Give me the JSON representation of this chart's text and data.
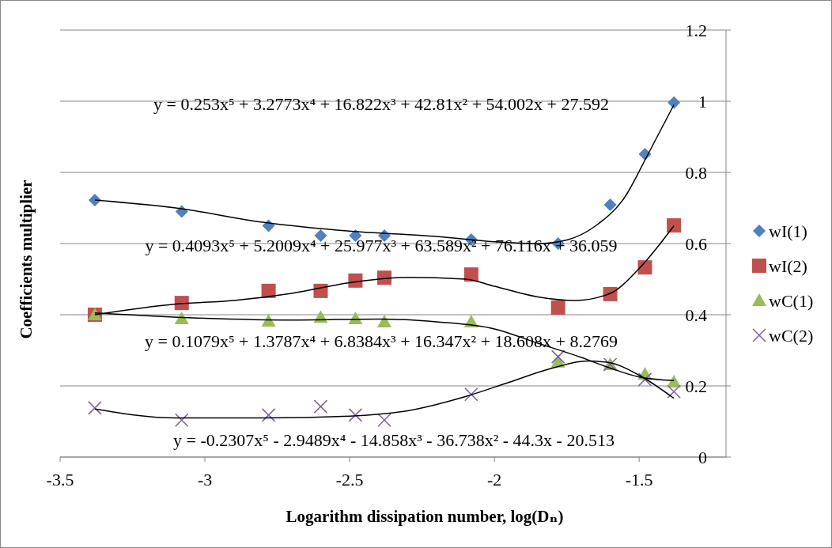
{
  "chart_data": {
    "type": "scatter",
    "xlabel": "Logarithm dissipation number, log(Dₙ)",
    "ylabel": "Coefficients multiplier",
    "x": [
      -3.38,
      -3.08,
      -2.78,
      -2.6,
      -2.48,
      -2.38,
      -2.08,
      -1.78,
      -1.6,
      -1.48,
      -1.38
    ],
    "xlim": [
      -3.5,
      -1.2
    ],
    "xticks": [
      -3.5,
      -3,
      -2.5,
      -2,
      -1.5
    ],
    "ylim": [
      0,
      1.2
    ],
    "yticks": [
      0,
      0.2,
      0.4,
      0.6,
      0.8,
      1,
      1.2
    ],
    "grid": "y",
    "legend": "right",
    "series": [
      {
        "name": "wI(1)",
        "color": "#4f81bd",
        "marker": "diamond",
        "values": [
          0.722,
          0.69,
          0.65,
          0.622,
          0.622,
          0.622,
          0.611,
          0.6,
          0.709,
          0.851,
          0.996
        ]
      },
      {
        "name": "wI(2)",
        "color": "#c0504d",
        "marker": "square",
        "values": [
          0.4,
          0.433,
          0.467,
          0.467,
          0.496,
          0.504,
          0.513,
          0.42,
          0.458,
          0.533,
          0.651
        ]
      },
      {
        "name": "wC(1)",
        "color": "#9bbb59",
        "marker": "triangle",
        "values": [
          0.4,
          0.389,
          0.382,
          0.393,
          0.389,
          0.38,
          0.38,
          0.267,
          0.26,
          0.233,
          0.211
        ]
      },
      {
        "name": "wC(2)",
        "color": "#8064a2",
        "marker": "cross",
        "values": [
          0.138,
          0.104,
          0.118,
          0.142,
          0.118,
          0.104,
          0.176,
          0.282,
          0.26,
          0.218,
          0.184
        ]
      },
      {
        "type": "line",
        "color": "#000000",
        "marker": "none",
        "x": [
          -3.38,
          -3.1,
          -2.8,
          -2.5,
          -2.2,
          -2.0,
          -1.85,
          -1.75,
          -1.65,
          -1.55,
          -1.47,
          -1.38
        ],
        "values": [
          0.722,
          0.7,
          0.66,
          0.635,
          0.62,
          0.605,
          0.6,
          0.61,
          0.65,
          0.73,
          0.85,
          0.99
        ]
      },
      {
        "type": "line",
        "color": "#000000",
        "marker": "none",
        "x": [
          -3.38,
          -3.1,
          -2.9,
          -2.7,
          -2.5,
          -2.3,
          -2.1,
          -2.0,
          -1.85,
          -1.72,
          -1.6,
          -1.5,
          -1.38
        ],
        "values": [
          0.4,
          0.43,
          0.44,
          0.46,
          0.49,
          0.505,
          0.5,
          0.48,
          0.45,
          0.44,
          0.46,
          0.53,
          0.65
        ]
      },
      {
        "type": "line",
        "color": "#000000",
        "marker": "none",
        "x": [
          -3.38,
          -3.0,
          -2.7,
          -2.4,
          -2.2,
          -2.0,
          -1.85,
          -1.7,
          -1.6,
          -1.5,
          -1.38
        ],
        "values": [
          0.405,
          0.39,
          0.385,
          0.388,
          0.38,
          0.36,
          0.32,
          0.28,
          0.25,
          0.225,
          0.215
        ]
      },
      {
        "type": "line",
        "color": "#000000",
        "marker": "none",
        "x": [
          -3.38,
          -3.1,
          -2.8,
          -2.5,
          -2.3,
          -2.1,
          -1.95,
          -1.8,
          -1.68,
          -1.6,
          -1.5,
          -1.38
        ],
        "values": [
          0.135,
          0.11,
          0.11,
          0.115,
          0.13,
          0.17,
          0.21,
          0.25,
          0.27,
          0.265,
          0.23,
          0.165
        ]
      }
    ],
    "annotations": [
      "y = 0.253x⁵ + 3.2773x⁴ + 16.822x³ + 42.81x² + 54.002x + 27.592",
      "y = 0.4093x⁵ + 5.2009x⁴ + 25.977x³ + 63.589x² + 76.116x + 36.059",
      "y = 0.1079x⁵ + 1.3787x⁴ + 6.8384x³ + 16.347x² + 18.608x + 8.2769",
      "y = -0.2307x⁵ - 2.9489x⁴ - 14.858x³ - 36.738x² - 44.3x - 20.513"
    ]
  }
}
